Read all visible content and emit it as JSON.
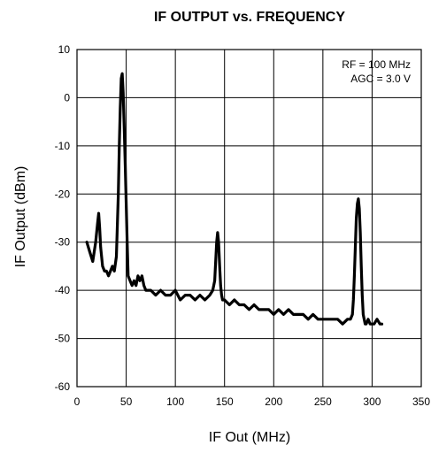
{
  "chart_data": {
    "type": "line",
    "title": "IF OUTPUT vs. FREQUENCY",
    "xlabel": "IF Out (MHz)",
    "ylabel": "IF Output (dBm)",
    "xlim": [
      0,
      350
    ],
    "ylim": [
      -60,
      10
    ],
    "xticks": [
      0,
      50,
      100,
      150,
      200,
      250,
      300,
      350
    ],
    "yticks": [
      10,
      0,
      -10,
      -20,
      -30,
      -40,
      -50,
      -60
    ],
    "grid": true,
    "annotations": [
      "RF = 100 MHz",
      "AGC = 3.0 V"
    ],
    "series": [
      {
        "color": "#000000",
        "x": [
          10,
          13,
          16,
          19,
          21,
          22,
          23,
          24,
          25,
          26,
          28,
          30,
          32,
          34,
          36,
          38,
          40,
          42,
          43,
          44,
          45,
          46,
          47,
          48,
          49,
          50,
          51,
          52,
          54,
          56,
          58,
          60,
          62,
          64,
          66,
          68,
          70,
          72,
          75,
          80,
          85,
          90,
          95,
          100,
          105,
          110,
          115,
          120,
          125,
          130,
          135,
          138,
          140,
          141,
          142,
          143,
          144,
          145,
          146,
          147,
          148,
          150,
          155,
          160,
          165,
          170,
          175,
          180,
          185,
          190,
          195,
          200,
          205,
          210,
          215,
          220,
          225,
          230,
          235,
          240,
          245,
          250,
          255,
          260,
          265,
          270,
          275,
          278,
          280,
          281,
          282,
          283,
          284,
          285,
          286,
          287,
          288,
          289,
          290,
          291,
          292,
          293,
          294,
          296,
          298,
          300,
          302,
          305,
          308,
          310
        ],
        "y": [
          -30,
          -32,
          -34,
          -30,
          -26,
          -24,
          -27,
          -31,
          -33,
          -35,
          -36,
          -36,
          -37,
          -36,
          -35,
          -36,
          -33,
          -20,
          -10,
          -2,
          4,
          5,
          1,
          -6,
          -14,
          -22,
          -30,
          -37,
          -38,
          -39,
          -38,
          -39,
          -37,
          -38,
          -37,
          -39,
          -40,
          -40,
          -40,
          -41,
          -40,
          -41,
          -41,
          -40,
          -42,
          -41,
          -41,
          -42,
          -41,
          -42,
          -41,
          -40,
          -38,
          -34,
          -30,
          -28,
          -30,
          -35,
          -39,
          -41,
          -42,
          -42,
          -43,
          -42,
          -43,
          -43,
          -44,
          -43,
          -44,
          -44,
          -44,
          -45,
          -44,
          -45,
          -44,
          -45,
          -45,
          -45,
          -46,
          -45,
          -46,
          -46,
          -46,
          -46,
          -46,
          -47,
          -46,
          -46,
          -45,
          -42,
          -37,
          -31,
          -25,
          -22,
          -21,
          -23,
          -28,
          -35,
          -41,
          -45,
          -46,
          -47,
          -47,
          -46,
          -47,
          -47,
          -47,
          -46,
          -47,
          -47
        ]
      }
    ]
  }
}
